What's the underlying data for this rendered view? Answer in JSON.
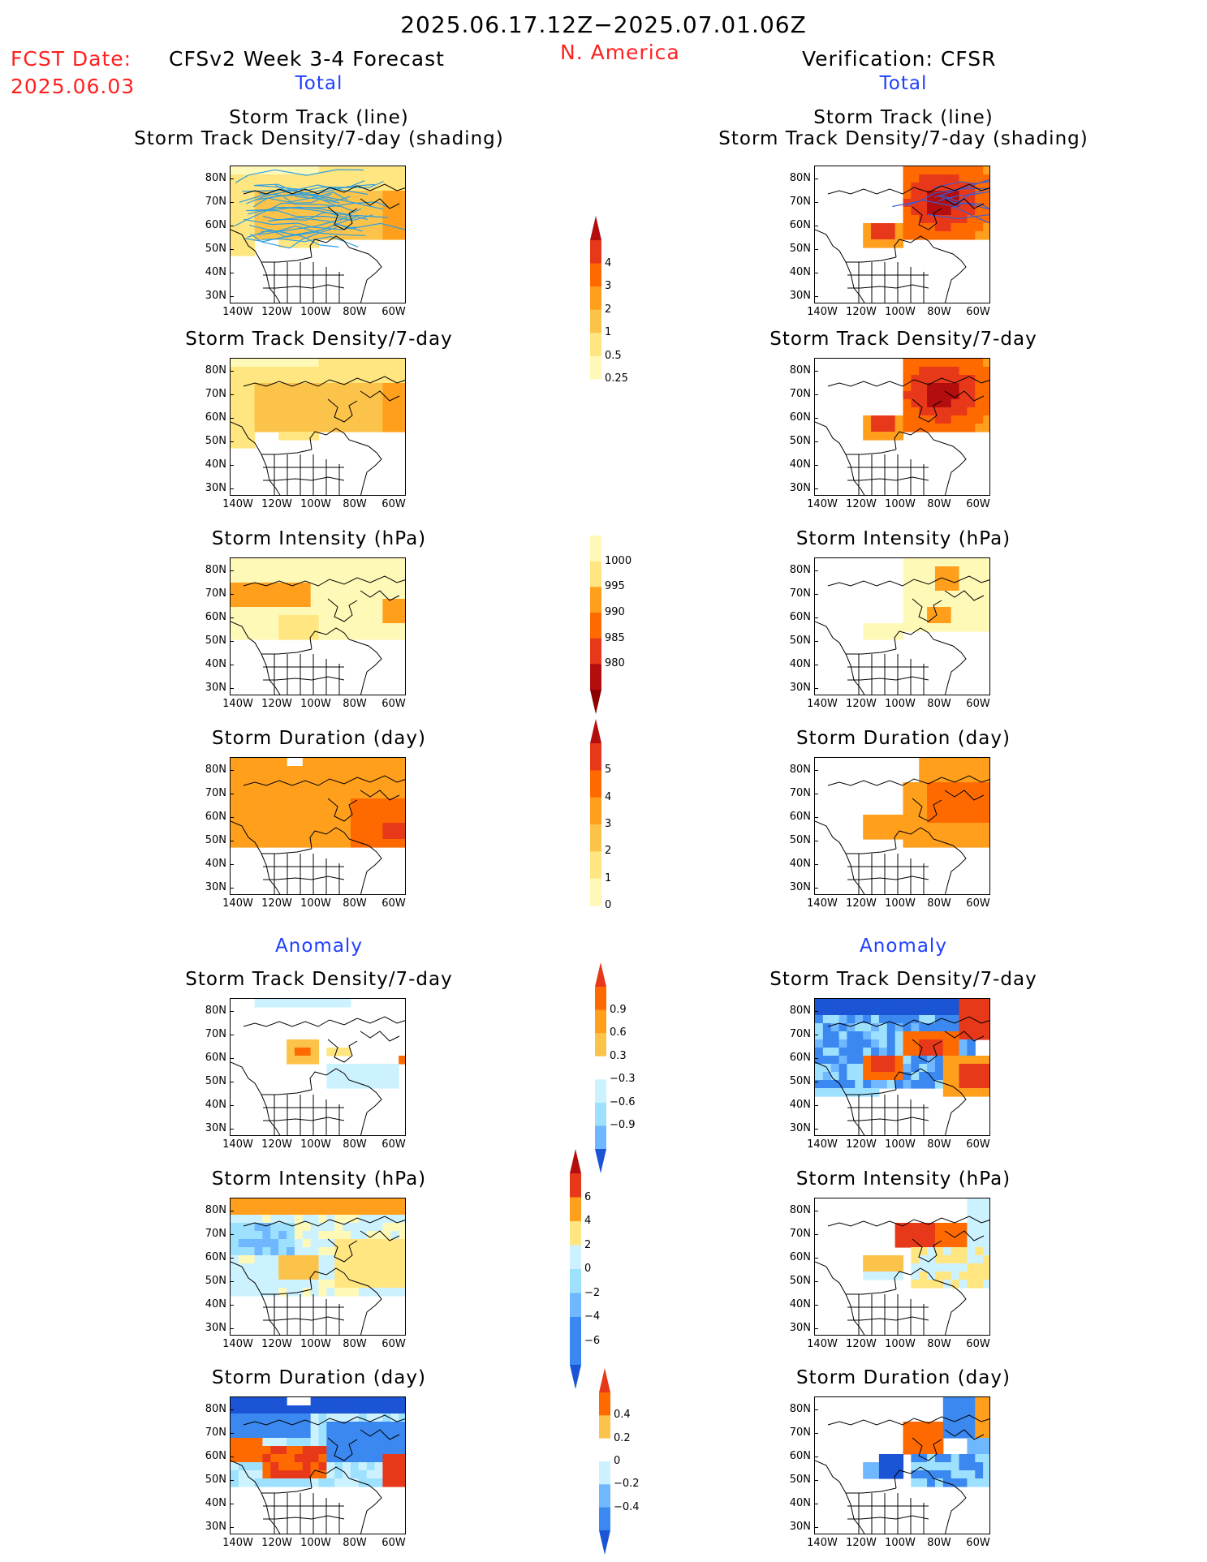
{
  "header": {
    "period": "2025.06.17.12Z−2025.07.01.06Z",
    "region": "N. America",
    "fcst_label": "FCST Date:",
    "fcst_date": "2025.06.03",
    "left_title": "CFSv2 Week 3-4 Forecast",
    "right_title": "Verification: CFSR"
  },
  "sections": {
    "total": "Total",
    "anomaly": "Anomaly"
  },
  "panel_titles": {
    "track_line": "Storm Track (line)",
    "track_shading": "Storm Track Density/7-day (shading)",
    "density": "Storm Track Density/7-day",
    "intensity": "Storm Intensity (hPa)",
    "duration": "Storm Duration (day)"
  },
  "axes": {
    "lat_ticks": [
      "80N",
      "70N",
      "60N",
      "50N",
      "40N",
      "30N"
    ],
    "lon_ticks": [
      "140W",
      "120W",
      "100W",
      "80W",
      "60W"
    ]
  },
  "colorbars": {
    "density_total": [
      "4",
      "3",
      "2",
      "1",
      "0.5",
      "0.25"
    ],
    "intensity_total": [
      "1000",
      "995",
      "990",
      "985",
      "980"
    ],
    "duration_total": [
      "5",
      "4",
      "3",
      "2",
      "1",
      "0"
    ],
    "density_anom": [
      "0.9",
      "0.6",
      "0.3",
      "−0.3",
      "−0.6",
      "−0.9"
    ],
    "intensity_anom": [
      "6",
      "4",
      "2",
      "0",
      "−2",
      "−4",
      "−6"
    ],
    "duration_anom": [
      "0.4",
      "0.2",
      "0",
      "−0.2",
      "−0.4"
    ]
  },
  "colors": {
    "warm": [
      "#fff9b8",
      "#ffe680",
      "#fcc34a",
      "#ff9f1c",
      "#ff6a00",
      "#e8381a",
      "#b30d0d"
    ],
    "cool": [
      "#cdf2ff",
      "#9de1ff",
      "#6fb7ff",
      "#3a88f0",
      "#1b55d6"
    ],
    "title_red": "#ff2020",
    "title_blue": "#1f3fff",
    "track_line": "#2f9fe0"
  },
  "chart_data": [
    {
      "type": "heatmap",
      "panel": "CFSv2 forecast total – storm track density/7-day with storm track lines",
      "colorbar": "density_total"
    },
    {
      "type": "heatmap",
      "panel": "CFSR verification total – storm track density/7-day with storm track lines",
      "colorbar": "density_total"
    },
    {
      "type": "heatmap",
      "panel": "CFSv2 forecast total – storm track density/7-day",
      "colorbar": "density_total"
    },
    {
      "type": "heatmap",
      "panel": "CFSR verification total – storm track density/7-day",
      "colorbar": "density_total"
    },
    {
      "type": "heatmap",
      "panel": "CFSv2 forecast total – storm intensity (hPa)",
      "colorbar": "intensity_total"
    },
    {
      "type": "heatmap",
      "panel": "CFSR verification total – storm intensity (hPa)",
      "colorbar": "intensity_total"
    },
    {
      "type": "heatmap",
      "panel": "CFSv2 forecast total – storm duration (day)",
      "colorbar": "duration_total"
    },
    {
      "type": "heatmap",
      "panel": "CFSR verification total – storm duration (day)",
      "colorbar": "duration_total"
    },
    {
      "type": "heatmap",
      "panel": "CFSv2 forecast anomaly – storm track density/7-day",
      "colorbar": "density_anom"
    },
    {
      "type": "heatmap",
      "panel": "CFSR verification anomaly – storm track density/7-day",
      "colorbar": "density_anom"
    },
    {
      "type": "heatmap",
      "panel": "CFSv2 forecast anomaly – storm intensity (hPa)",
      "colorbar": "intensity_anom"
    },
    {
      "type": "heatmap",
      "panel": "CFSR verification anomaly – storm intensity (hPa)",
      "colorbar": "intensity_anom"
    },
    {
      "type": "heatmap",
      "panel": "CFSv2 forecast anomaly – storm duration (day)",
      "colorbar": "duration_anom"
    },
    {
      "type": "heatmap",
      "panel": "CFSR verification anomaly – storm duration (day)",
      "colorbar": "duration_anom"
    }
  ]
}
